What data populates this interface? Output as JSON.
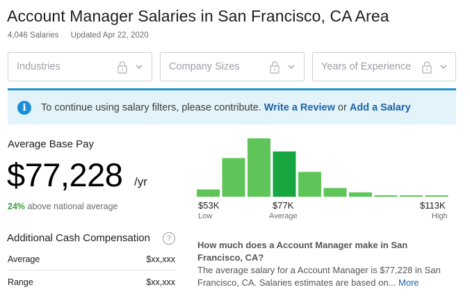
{
  "header": {
    "title": "Account Manager Salaries in San Francisco, CA Area",
    "salary_count": "4,046 Salaries",
    "updated": "Updated Apr 22, 2020"
  },
  "filters": [
    {
      "label": "Industries",
      "icon": "lock-icon"
    },
    {
      "label": "Company Sizes",
      "icon": "lock-icon"
    },
    {
      "label": "Years of Experience",
      "icon": "lock-icon"
    }
  ],
  "alert": {
    "text": "To continue using salary filters, please contribute.",
    "link1": "Write a Review",
    "connector": "or",
    "link2": "Add a Salary",
    "accent": "#1f8fce",
    "background": "#e2f3fa"
  },
  "pay": {
    "label": "Average Base Pay",
    "amount": "$77,228",
    "unit": "/yr",
    "pct": "24%",
    "comparison": "above national average"
  },
  "additional_cash": {
    "title": "Additional Cash Compensation",
    "rows": [
      {
        "key": "Average",
        "value": "$xx,xxx"
      },
      {
        "key": "Range",
        "value": "$xx,xxx"
      }
    ]
  },
  "chart_data": {
    "type": "bar",
    "categories": [
      "1",
      "2",
      "3",
      "4",
      "5",
      "6",
      "7",
      "8",
      "9",
      "10"
    ],
    "values": [
      10,
      53,
      80,
      62,
      34,
      12,
      6,
      2,
      1,
      1
    ],
    "highlight_index": 3,
    "ylim": [
      0,
      80
    ],
    "colors": {
      "bar": "#5fc559",
      "highlight": "#17a640"
    }
  },
  "hist_labels": {
    "low_value": "$53K",
    "low_label": "Low",
    "avg_value": "$77K",
    "avg_label": "Average",
    "high_value": "$113K",
    "high_label": "High"
  },
  "faq": {
    "question": "How much does a Account Manager make in San Francisco, CA?",
    "answer": "The average salary for a Account Manager is $77,228 in San Francisco, CA. Salaries estimates are based on...",
    "more": "More"
  }
}
